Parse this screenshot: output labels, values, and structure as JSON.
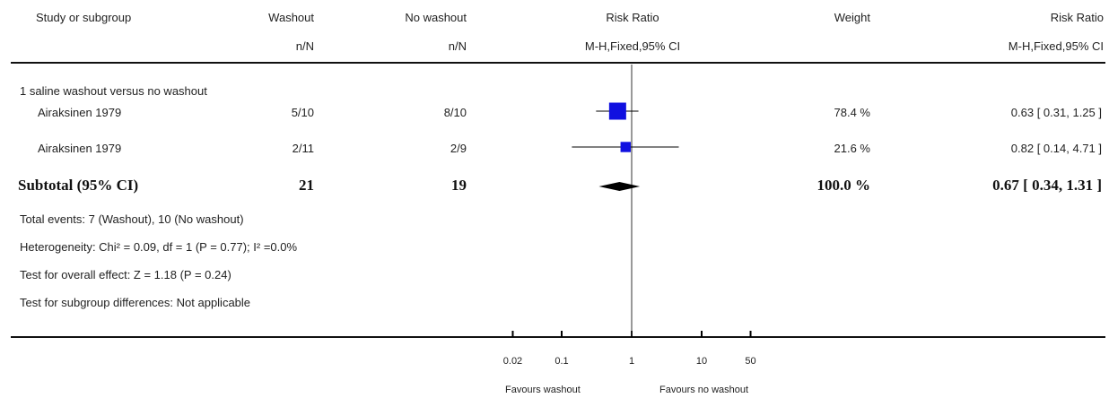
{
  "header": {
    "study_col": "Study or subgroup",
    "group1": "Washout",
    "group2": "No washout",
    "rr_label": "Risk Ratio",
    "weight_label": "Weight",
    "rr_label2": "Risk Ratio",
    "nN1": "n/N",
    "nN2": "n/N",
    "method": "M-H,Fixed,95% CI",
    "method2": "M-H,Fixed,95% CI"
  },
  "subgroup_title": "1 saline washout versus no washout",
  "subtotal": {
    "label": "Subtotal (95% CI)",
    "n1": "21",
    "n2": "19",
    "weight": "100.0 %",
    "ci_text": "0.67 [ 0.34, 1.31 ]"
  },
  "notes": [
    "Total events: 7 (Washout), 10 (No washout)",
    "Heterogeneity: Chi² = 0.09, df = 1 (P = 0.77); I² =0.0%",
    "Test for overall effect: Z = 1.18 (P = 0.24)",
    "Test for subgroup differences: Not applicable"
  ],
  "axis_ticks": [
    "0.02",
    "0.1",
    "1",
    "10",
    "50"
  ],
  "favours_left": "Favours washout",
  "favours_right": "Favours no washout",
  "colors": {
    "marker": "#1010e0",
    "line": "#000000",
    "diamond": "#000000"
  },
  "chart_data": {
    "type": "forest",
    "scale": "log",
    "xlim": [
      0.02,
      50
    ],
    "null_value": 1,
    "ticks": [
      0.02,
      0.1,
      1,
      10,
      50
    ],
    "studies": [
      {
        "name": "Airaksinen 1979",
        "n1": "5/10",
        "n2": "8/10",
        "rr": 0.63,
        "lo": 0.31,
        "hi": 1.25,
        "weight": 78.4,
        "weight_text": "78.4 %",
        "ci_text": "0.63 [ 0.31, 1.25 ]"
      },
      {
        "name": "Airaksinen 1979",
        "n1": "2/11",
        "n2": "2/9",
        "rr": 0.82,
        "lo": 0.14,
        "hi": 4.71,
        "weight": 21.6,
        "weight_text": "21.6 %",
        "ci_text": "0.82 [ 0.14, 4.71 ]"
      }
    ],
    "pooled": {
      "rr": 0.67,
      "lo": 0.34,
      "hi": 1.31
    }
  }
}
